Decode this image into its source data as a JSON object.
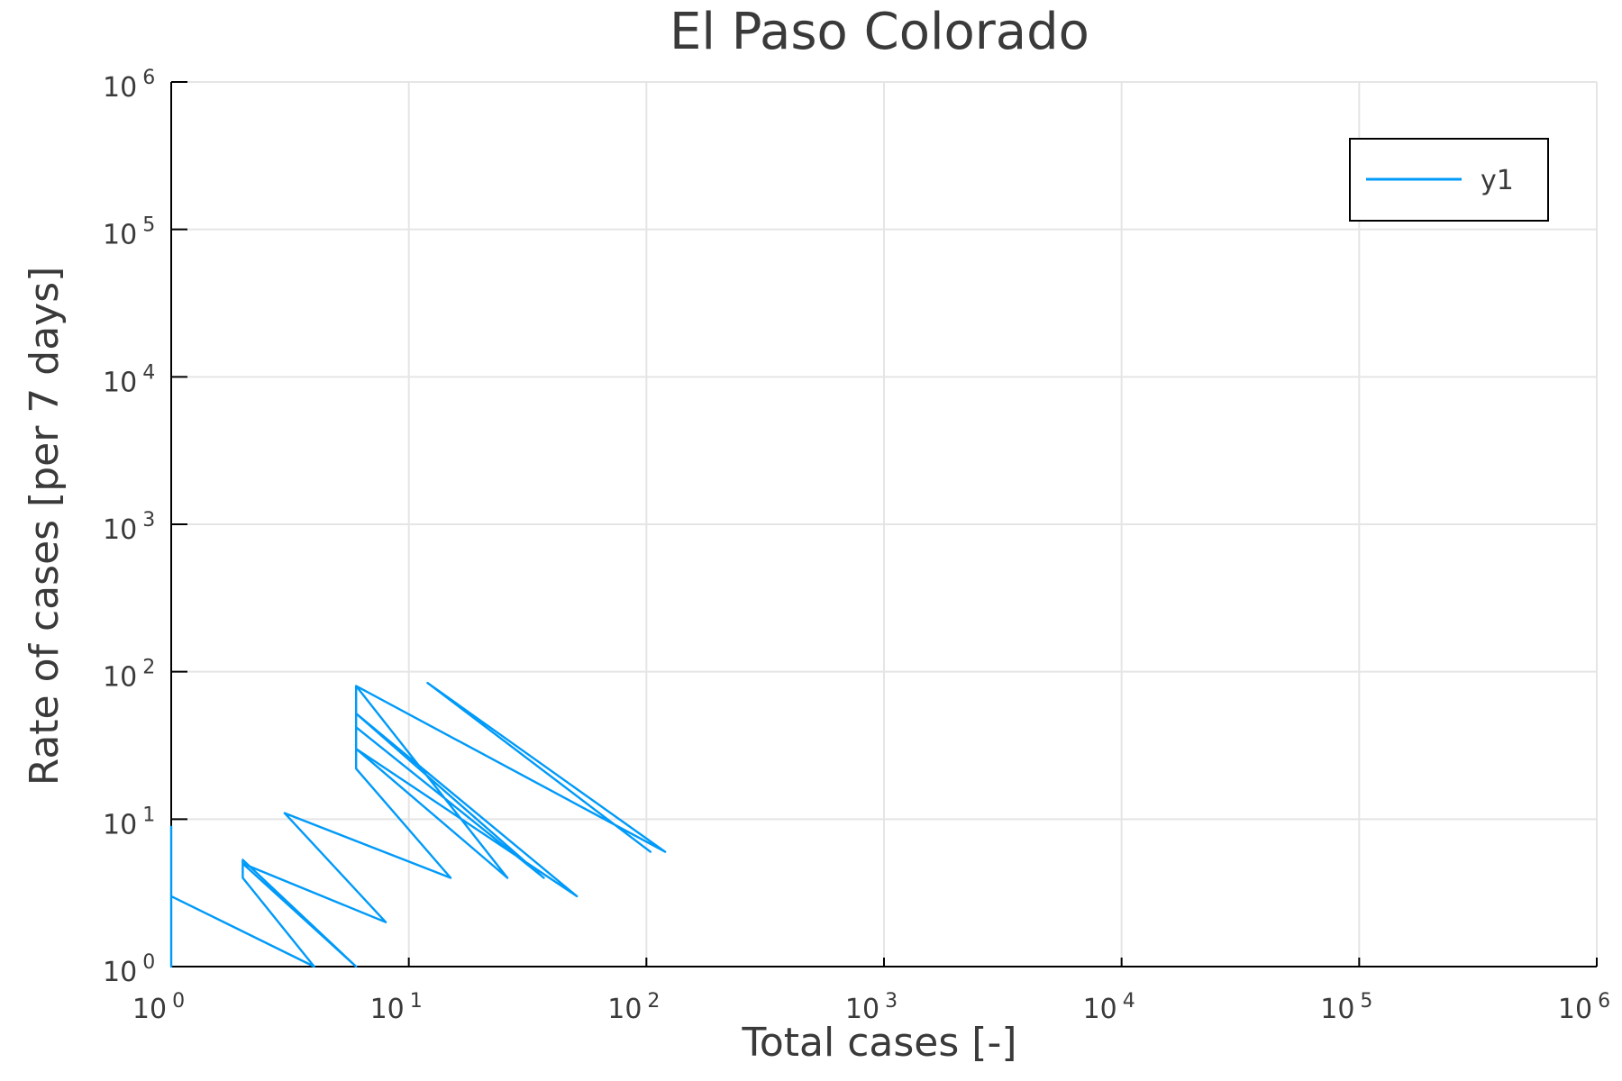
{
  "chart_data": {
    "type": "line",
    "title": "El Paso Colorado",
    "xlabel": "Total cases [-]",
    "ylabel": "Rate of cases [per 7 days]",
    "xscale": "log",
    "yscale": "log",
    "xlim": [
      1,
      1000000
    ],
    "ylim": [
      1,
      1000000
    ],
    "xticks": [
      {
        "base": "10",
        "exp": "0"
      },
      {
        "base": "10",
        "exp": "1"
      },
      {
        "base": "10",
        "exp": "2"
      },
      {
        "base": "10",
        "exp": "3"
      },
      {
        "base": "10",
        "exp": "4"
      },
      {
        "base": "10",
        "exp": "5"
      },
      {
        "base": "10",
        "exp": "6"
      }
    ],
    "yticks": [
      {
        "base": "10",
        "exp": "0"
      },
      {
        "base": "10",
        "exp": "1"
      },
      {
        "base": "10",
        "exp": "2"
      },
      {
        "base": "10",
        "exp": "3"
      },
      {
        "base": "10",
        "exp": "4"
      },
      {
        "base": "10",
        "exp": "5"
      },
      {
        "base": "10",
        "exp": "6"
      }
    ],
    "grid": true,
    "legend_position": "top-right",
    "series": [
      {
        "name": "y1",
        "color": "#009af9",
        "x": [
          1,
          1,
          1,
          4,
          2,
          2,
          6,
          2,
          8,
          3,
          15,
          6,
          6,
          26,
          6,
          6,
          37,
          6,
          51,
          6,
          6,
          120,
          12,
          104,
          12
        ],
        "y": [
          9,
          1,
          3,
          1,
          4,
          5.3,
          1,
          5,
          2,
          11,
          4,
          22,
          80,
          4,
          30,
          42,
          4,
          52,
          3,
          30,
          80,
          6,
          84,
          6,
          84
        ]
      }
    ]
  }
}
